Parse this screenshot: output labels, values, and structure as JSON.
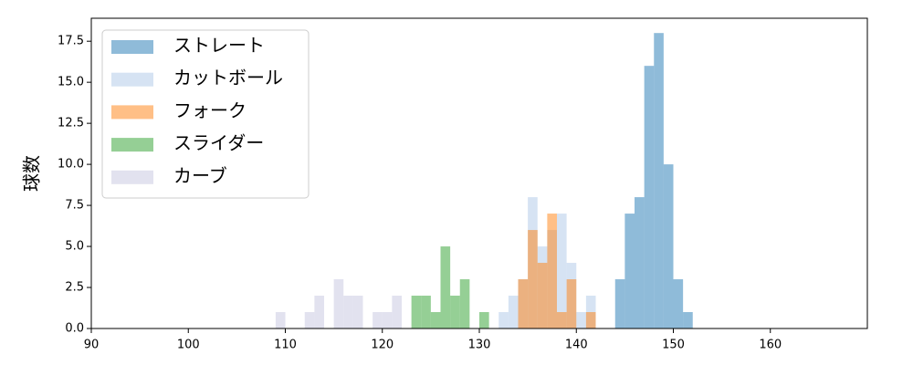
{
  "chart_data": {
    "type": "histogram",
    "ylabel": "球数",
    "series": [
      {
        "name": "ストレート",
        "color": "#1f77b4",
        "bins": [
          144,
          145,
          146,
          147,
          148,
          149,
          150,
          151,
          152
        ],
        "values": [
          3,
          7,
          8,
          16,
          18,
          10,
          3,
          1
        ]
      },
      {
        "name": "カットボール",
        "color": "#aec7e8",
        "bins": [
          132,
          133,
          134,
          135,
          136,
          137,
          138,
          139,
          140,
          141,
          142
        ],
        "values": [
          1,
          2,
          3,
          8,
          5,
          6,
          7,
          4,
          1,
          2
        ]
      },
      {
        "name": "フォーク",
        "color": "#ff7f0e",
        "bins": [
          134,
          135,
          136,
          137,
          138,
          139,
          140,
          141,
          142
        ],
        "values": [
          3,
          6,
          4,
          7,
          1,
          3,
          0,
          1
        ]
      },
      {
        "name": "スライダー",
        "color": "#2ca02c",
        "bins": [
          123,
          124,
          125,
          126,
          127,
          128,
          129,
          130,
          131
        ],
        "values": [
          2,
          2,
          1,
          5,
          2,
          3,
          0,
          1
        ]
      },
      {
        "name": "カーブ",
        "color": "#c5c5e0",
        "bins": [
          109,
          110,
          111,
          112,
          113,
          114,
          115,
          116,
          117,
          118,
          119,
          120,
          121,
          122
        ],
        "values": [
          1,
          0,
          0,
          1,
          2,
          0,
          3,
          2,
          2,
          0,
          1,
          1,
          2
        ]
      }
    ],
    "xlim": [
      90,
      170
    ],
    "xticks": [
      90,
      100,
      110,
      120,
      130,
      140,
      150,
      160
    ],
    "ylim": [
      0,
      18.9
    ],
    "yticks": [
      {
        "value": 0,
        "label": "0.0"
      },
      {
        "value": 2.5,
        "label": "2.5"
      },
      {
        "value": 5,
        "label": "5.0"
      },
      {
        "value": 7.5,
        "label": "7.5"
      },
      {
        "value": 10,
        "label": "10.0"
      },
      {
        "value": 12.5,
        "label": "12.5"
      },
      {
        "value": 15,
        "label": "15.0"
      },
      {
        "value": 17.5,
        "label": "17.5"
      }
    ],
    "legend": "upper left"
  }
}
